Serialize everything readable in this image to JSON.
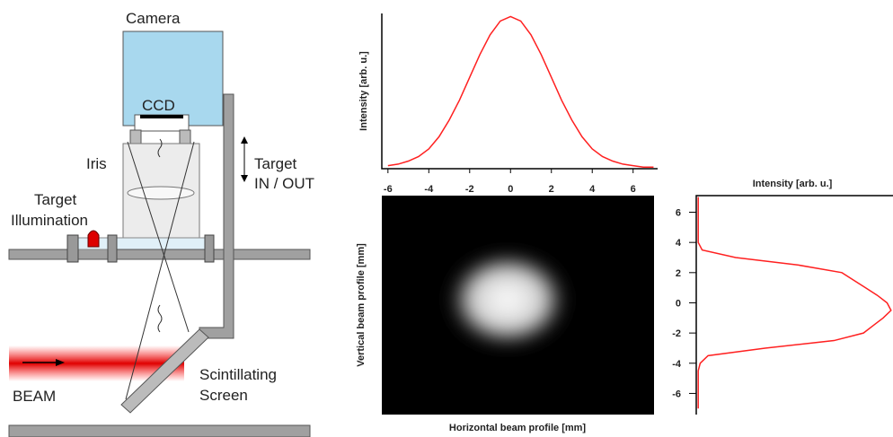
{
  "diagram": {
    "camera": "Camera",
    "ccd": "CCD",
    "iris": "Iris",
    "target_in_out": [
      "Target",
      "IN / OUT"
    ],
    "target_illumination": [
      "Target",
      "Illumination"
    ],
    "beam": "BEAM",
    "scintillating_screen": [
      "Scintillating",
      "Screen"
    ]
  },
  "chart_data": [
    {
      "type": "line",
      "y_label": "Intensity [arb. u.]",
      "color": "#ff2020",
      "x": [
        -6,
        -5.5,
        -5,
        -4.5,
        -4,
        -3.5,
        -3,
        -2.5,
        -2,
        -1.5,
        -1,
        -0.5,
        0,
        0.5,
        1,
        1.5,
        2,
        2.5,
        3,
        3.5,
        4,
        4.5,
        5,
        5.5,
        6,
        6.5,
        7
      ],
      "values": [
        0.02,
        0.03,
        0.05,
        0.08,
        0.13,
        0.21,
        0.32,
        0.45,
        0.6,
        0.75,
        0.88,
        0.97,
        1.0,
        0.97,
        0.88,
        0.75,
        0.6,
        0.45,
        0.32,
        0.21,
        0.13,
        0.08,
        0.05,
        0.03,
        0.02,
        0.01,
        0.01
      ],
      "xlim": [
        -6.3,
        7.2
      ],
      "xticks": [
        -6,
        -4,
        -2,
        0,
        2,
        4,
        6
      ],
      "ylim": [
        0,
        1.02
      ]
    },
    {
      "type": "image",
      "x_label": "Horizontal beam profile [mm]",
      "y_label": "Vertical beam profile [mm]"
    },
    {
      "type": "vline",
      "x_label": "Intensity [arb. u.]",
      "color": "#ff2020",
      "y": [
        7,
        6.5,
        6,
        5.5,
        5,
        4.5,
        4,
        3.5,
        3,
        2.5,
        2,
        1.5,
        1,
        0.5,
        0,
        -0.5,
        -1,
        -1.5,
        -2,
        -2.5,
        -3,
        -3.5,
        -4,
        -4.5,
        -5,
        -5.5,
        -6,
        -6.5,
        -7
      ],
      "values": [
        0.01,
        0.01,
        0.01,
        0.01,
        0.01,
        0.01,
        0.01,
        0.03,
        0.2,
        0.52,
        0.74,
        0.8,
        0.86,
        0.92,
        0.97,
        0.99,
        0.95,
        0.9,
        0.85,
        0.7,
        0.35,
        0.06,
        0.02,
        0.01,
        0.01,
        0.01,
        0.01,
        0.01,
        0.01
      ],
      "xlim": [
        0,
        1.0
      ],
      "ylim": [
        -7.4,
        7.1
      ],
      "yticks": [
        -6,
        -4,
        -2,
        0,
        2,
        4,
        6
      ]
    }
  ]
}
